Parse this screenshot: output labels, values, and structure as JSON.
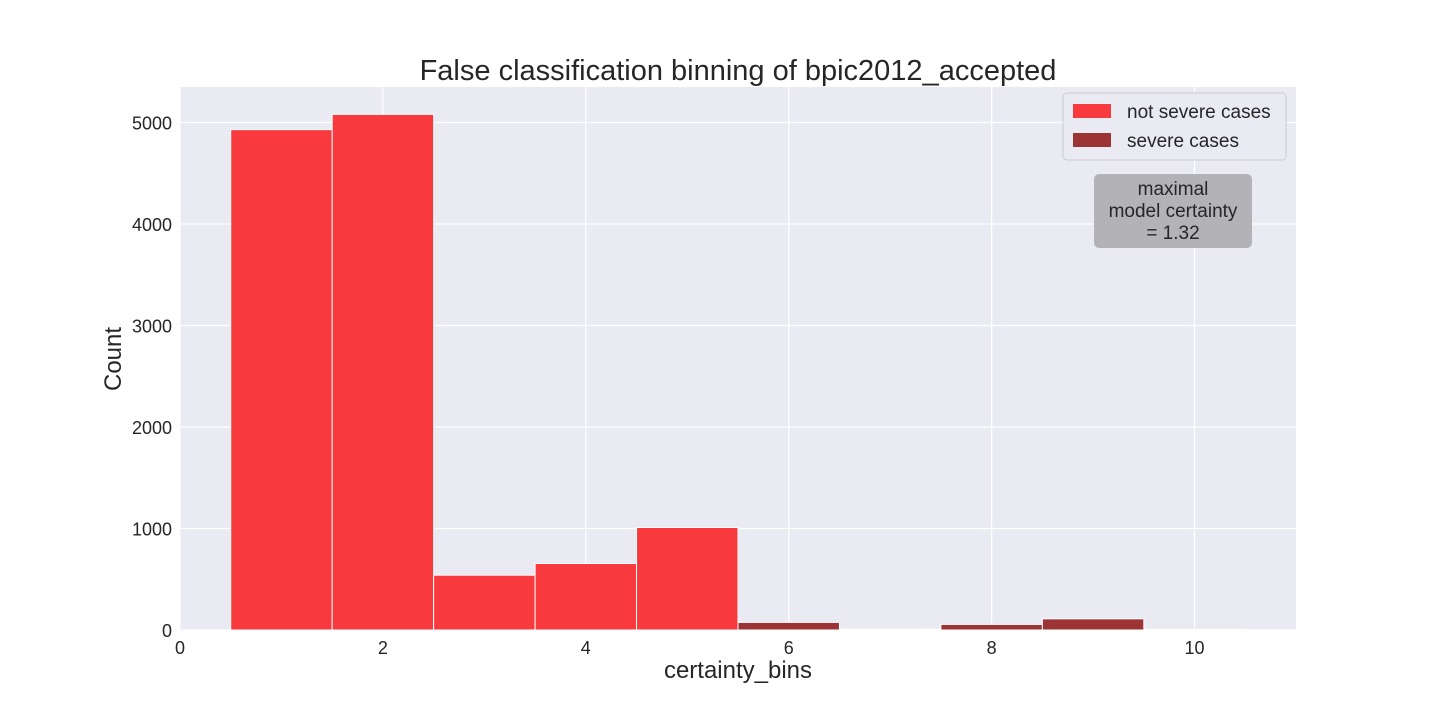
{
  "chart_data": {
    "type": "bar",
    "title": "False classification binning of bpic2012_accepted",
    "xlabel": "certainty_bins",
    "ylabel": "Count",
    "xlim": [
      0,
      11
    ],
    "ylim": [
      0,
      5350
    ],
    "xticks": [
      0,
      2,
      4,
      6,
      8,
      10
    ],
    "yticks": [
      0,
      1000,
      2000,
      3000,
      4000,
      5000
    ],
    "grid": true,
    "legend_position": "top-right",
    "bar_width": 1,
    "series": [
      {
        "name": "not severe cases",
        "color": "#f8393d",
        "x": [
          1,
          2,
          3,
          4,
          5
        ],
        "values": [
          4930,
          5080,
          540,
          655,
          1010
        ]
      },
      {
        "name": "severe cases",
        "color": "#9c3436",
        "x": [
          6,
          7,
          8,
          9,
          10
        ],
        "values": [
          75,
          10,
          55,
          110,
          5
        ]
      }
    ],
    "annotation": {
      "lines": [
        "maximal",
        "model certainty",
        "= 1.32"
      ],
      "x": 9.75,
      "y": 4100,
      "background": "#b3b3b7"
    }
  }
}
